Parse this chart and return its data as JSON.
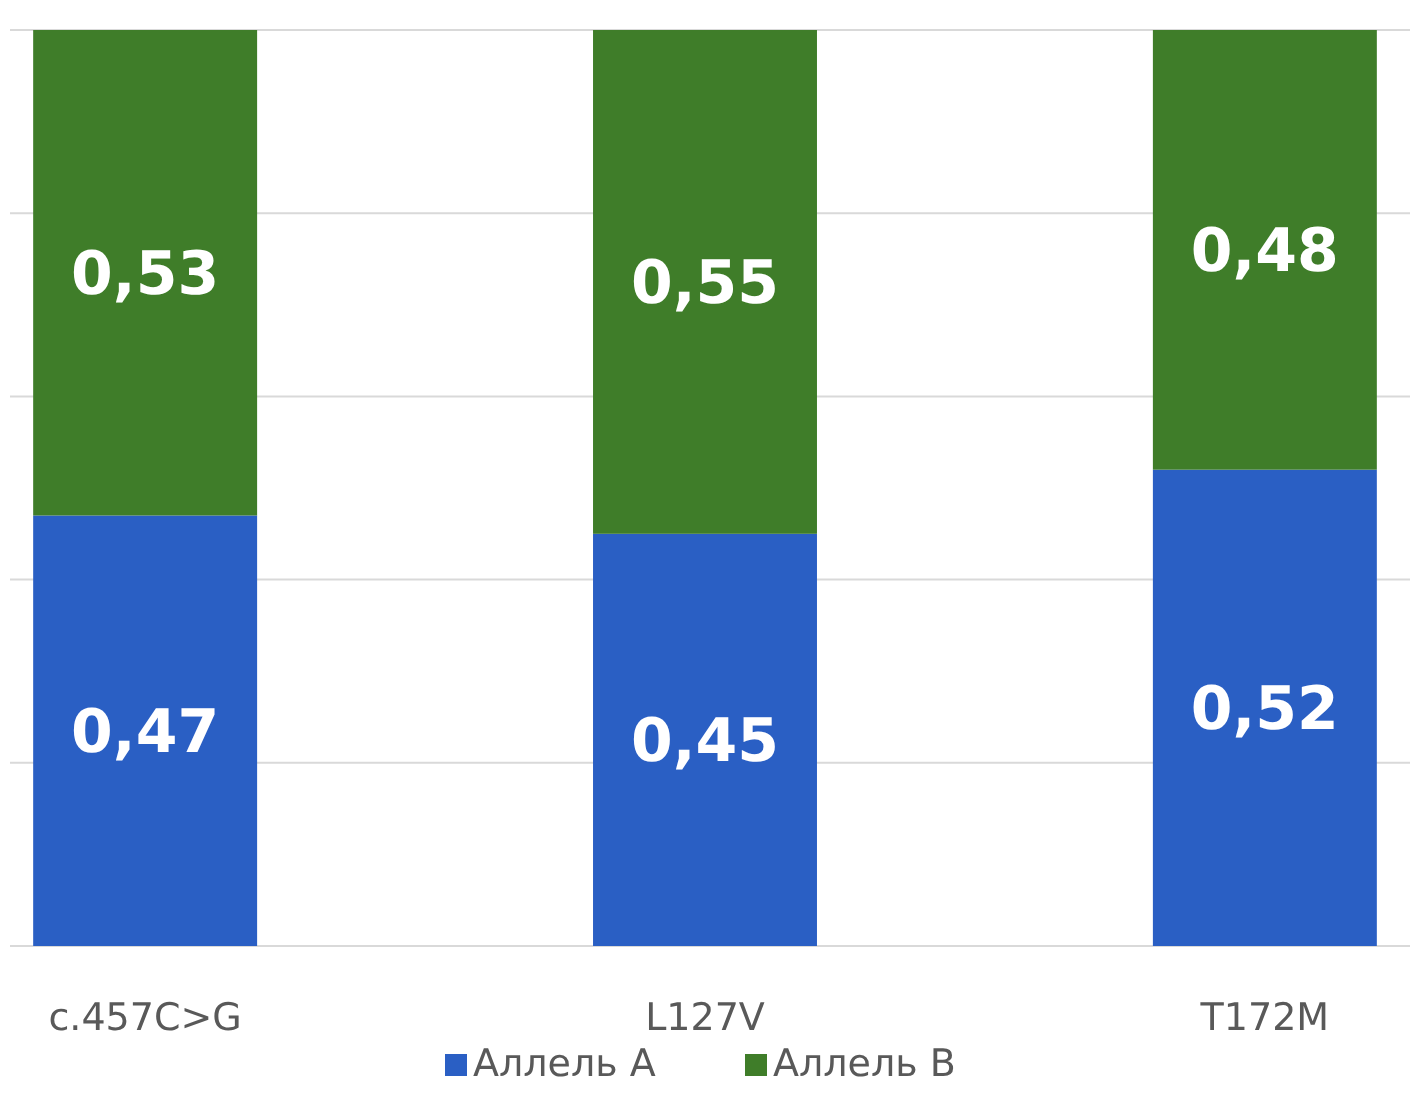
{
  "chart_data": {
    "type": "bar",
    "stacked": true,
    "categories": [
      "c.457C>G",
      "L127V",
      "T172M"
    ],
    "series": [
      {
        "name": "Аллель А",
        "color": "#2a5fc4",
        "values": [
          0.47,
          0.45,
          0.52
        ],
        "value_labels": [
          "0,47",
          "0,45",
          "0,52"
        ]
      },
      {
        "name": "Аллель В",
        "color": "#3f7d29",
        "values": [
          0.53,
          0.55,
          0.48
        ],
        "value_labels": [
          "0,53",
          "0,55",
          "0,48"
        ]
      }
    ],
    "ylim": [
      0,
      1
    ],
    "yticks": [
      {
        "value": 0,
        "label": null
      },
      {
        "value": 0.2,
        "label": null
      },
      {
        "value": 0.4,
        "label": null
      },
      {
        "value": 0.6,
        "label": null
      },
      {
        "value": 0.8,
        "label": null
      },
      {
        "value": 1,
        "label": null
      }
    ],
    "tick_labels": "x",
    "grid": "y",
    "legend": "bottom"
  }
}
